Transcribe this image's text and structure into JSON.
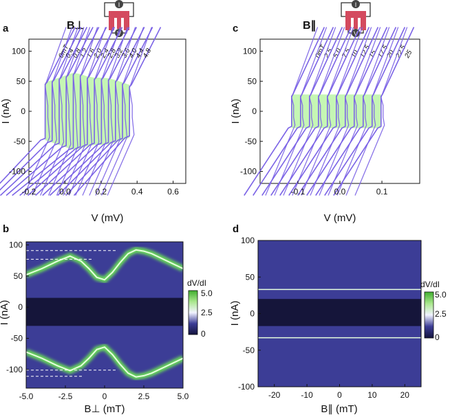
{
  "colors": {
    "curve": "#7b63e6",
    "fill": "#c2f5b0",
    "map_bg": "#3c3d96",
    "map_center": "#15153a",
    "map_green": "#69d85a",
    "map_white": "#e8ecff"
  },
  "chart_data": [
    {
      "id": "a",
      "type": "line",
      "panel_label": "a",
      "title": "B⊥",
      "xlabel": "V (mV)",
      "ylabel": "I (nA)",
      "xlim": [
        -0.2,
        0.67
      ],
      "ylim": [
        -120,
        120
      ],
      "xticks": [
        "-0.2",
        "0.0",
        "0.2",
        "0.4",
        "0.6"
      ],
      "xtick_values": [
        -0.2,
        0.0,
        0.2,
        0.4,
        0.6
      ],
      "yticks": [
        "100",
        "50",
        "0",
        "-50",
        "-100"
      ],
      "ytick_values": [
        100,
        50,
        0,
        -50,
        -100
      ],
      "offset_step_mV": 0.039,
      "series": [
        {
          "name": "0mT",
          "ic": 48
        },
        {
          "name": "0.4",
          "ic": 52
        },
        {
          "name": "0.8",
          "ic": 56
        },
        {
          "name": "1.2",
          "ic": 60
        },
        {
          "name": "1.6",
          "ic": 64
        },
        {
          "name": "2.0",
          "ic": 62
        },
        {
          "name": "2.4",
          "ic": 58
        },
        {
          "name": "2.8",
          "ic": 56
        },
        {
          "name": "3.2",
          "ic": 56
        },
        {
          "name": "3.6",
          "ic": 55
        },
        {
          "name": "4.0",
          "ic": 52
        },
        {
          "name": "4.4",
          "ic": 48
        },
        {
          "name": "4.8",
          "ic": 44
        }
      ]
    },
    {
      "id": "c",
      "type": "line",
      "panel_label": "c",
      "title": "B∥",
      "xlabel": "V (mV)",
      "ylabel": "I (nA)",
      "xlim": [
        -0.19,
        0.19
      ],
      "ylim": [
        -120,
        120
      ],
      "xticks": [
        "-0.1",
        "0.0",
        "0.1"
      ],
      "xtick_values": [
        -0.1,
        0.0,
        0.1
      ],
      "yticks": [
        "100",
        "50",
        "0",
        "-50",
        "-100"
      ],
      "ytick_values": [
        100,
        50,
        0,
        -50,
        -100
      ],
      "offset_step_mV": 0.0213,
      "series": [
        {
          "name": "0mT",
          "ic": 28
        },
        {
          "name": "2.5",
          "ic": 28
        },
        {
          "name": "5.0",
          "ic": 28
        },
        {
          "name": "7.5",
          "ic": 28
        },
        {
          "name": "10",
          "ic": 28
        },
        {
          "name": "12.5",
          "ic": 28
        },
        {
          "name": "15",
          "ic": 28
        },
        {
          "name": "17.5",
          "ic": 28
        },
        {
          "name": "20",
          "ic": 28
        },
        {
          "name": "22.5",
          "ic": 28
        },
        {
          "name": "25",
          "ic": 28
        }
      ]
    },
    {
      "id": "b",
      "type": "heatmap",
      "panel_label": "b",
      "xlabel": "B⊥ (mT)",
      "ylabel": "I (nA)",
      "xlim": [
        -5,
        5
      ],
      "ylim": [
        -130,
        105
      ],
      "xticks": [
        "-5.0",
        "-2.5",
        "0",
        "2.5",
        "5.0"
      ],
      "xtick_values": [
        -5,
        -2.5,
        0,
        2.5,
        5
      ],
      "yticks": [
        "100",
        "50",
        "0",
        "-50",
        "-100"
      ],
      "ytick_values": [
        100,
        50,
        0,
        -50,
        -100
      ],
      "colorbar": {
        "label": "dV/dI",
        "ticks": [
          "5.0",
          "2.5",
          "0"
        ],
        "min": 0,
        "max": 5
      },
      "retrapping_current_nA": [
        15,
        -30
      ],
      "switching_current_B_mT": [
        -5,
        -4,
        -3,
        -2.2,
        -1.5,
        -1,
        -0.5,
        0,
        0.5,
        1,
        1.5,
        2,
        2.5,
        3,
        4,
        5
      ],
      "switching_current_nA": [
        52,
        62,
        74,
        82,
        74,
        62,
        48,
        44,
        56,
        72,
        86,
        92,
        90,
        86,
        74,
        62
      ],
      "reference_lines_nA": [
        91,
        77,
        -101,
        -111
      ]
    },
    {
      "id": "d",
      "type": "heatmap",
      "panel_label": "d",
      "xlabel": "B∥ (mT)",
      "ylabel": "I (nA)",
      "xlim": [
        -25,
        25
      ],
      "ylim": [
        -100,
        100
      ],
      "xticks": [
        "-20",
        "-10",
        "0",
        "10",
        "20"
      ],
      "xtick_values": [
        -20,
        -10,
        0,
        10,
        20
      ],
      "yticks": [
        "100",
        "50",
        "0",
        "-50",
        "-100"
      ],
      "ytick_values": [
        100,
        50,
        0,
        -50,
        -100
      ],
      "colorbar": {
        "label": "dV/dI",
        "ticks": [
          "5.0",
          "2.5",
          "0"
        ],
        "min": 0,
        "max": 5
      },
      "retrapping_current_nA": [
        20,
        -17
      ],
      "switching_current_nA": [
        33,
        -33
      ]
    }
  ]
}
